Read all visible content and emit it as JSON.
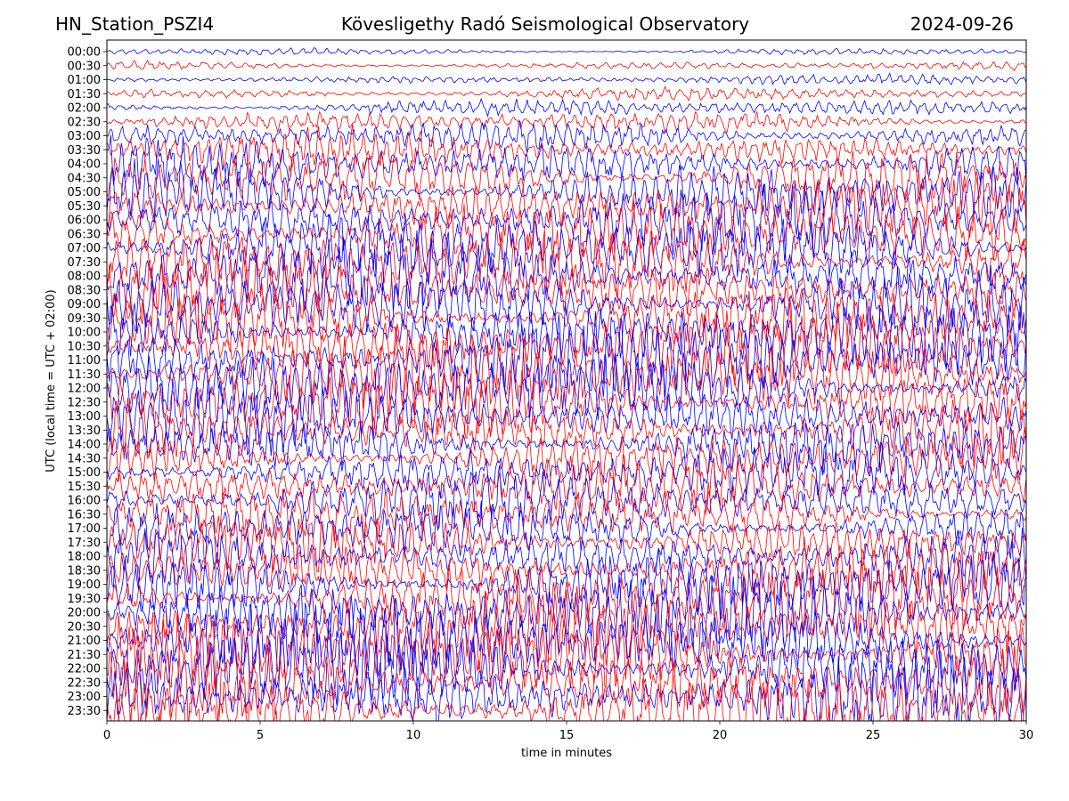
{
  "header": {
    "left": "HN_Station_PSZI4",
    "center": "Kövesligethy Radó Seismological Observatory",
    "right": "2024-09-26"
  },
  "chart_data": {
    "type": "line",
    "description": "helicorder",
    "xlabel": "time in minutes",
    "ylabel": "UTC (local time = UTC + 02:00)",
    "xlim": [
      0,
      30
    ],
    "x_ticks": [
      0,
      5,
      10,
      15,
      20,
      25,
      30
    ],
    "y_tick_labels": [
      "00:00",
      "00:30",
      "01:00",
      "01:30",
      "02:00",
      "02:30",
      "03:00",
      "03:30",
      "04:00",
      "04:30",
      "05:00",
      "05:30",
      "06:00",
      "06:30",
      "07:00",
      "07:30",
      "08:00",
      "08:30",
      "09:00",
      "09:30",
      "10:00",
      "10:30",
      "11:00",
      "11:30",
      "12:00",
      "12:30",
      "13:00",
      "13:30",
      "14:00",
      "14:30",
      "15:00",
      "15:30",
      "16:00",
      "16:30",
      "17:00",
      "17:30",
      "18:00",
      "18:30",
      "19:00",
      "19:30",
      "20:00",
      "20:30",
      "21:00",
      "21:30",
      "22:00",
      "22:30",
      "23:00",
      "23:30"
    ],
    "trace_colors": [
      "#0000ff",
      "#ff0000"
    ],
    "relative_amplitude_per_line": [
      0.35,
      0.45,
      0.5,
      0.6,
      0.8,
      1.0,
      1.4,
      1.8,
      2.4,
      2.8,
      3.0,
      3.0,
      3.1,
      3.2,
      3.4,
      3.4,
      3.5,
      3.6,
      3.6,
      3.6,
      3.6,
      3.6,
      3.6,
      3.6,
      3.5,
      3.4,
      3.2,
      3.0,
      2.8,
      2.6,
      2.6,
      2.6,
      2.6,
      2.5,
      2.6,
      2.8,
      3.0,
      3.2,
      3.4,
      3.6,
      3.8,
      3.9,
      4.0,
      4.0,
      4.0,
      4.0,
      4.0,
      4.0
    ]
  }
}
